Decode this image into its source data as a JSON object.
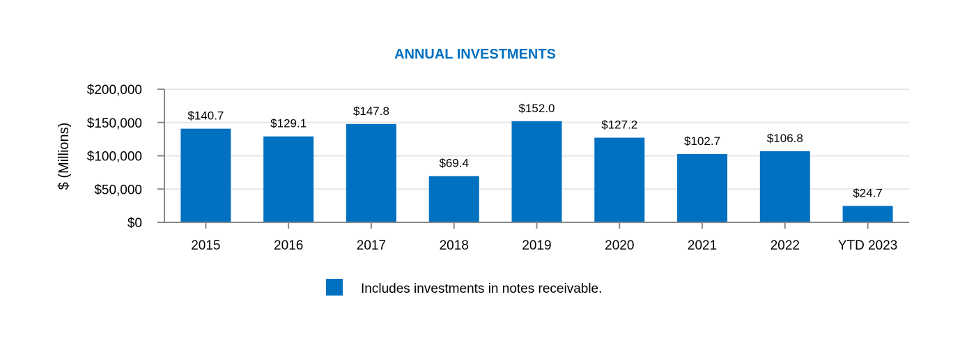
{
  "chart_data": {
    "type": "bar",
    "title": "ANNUAL INVESTMENTS",
    "xlabel": "",
    "ylabel": "$ (Millions)",
    "ylim": [
      0,
      200000
    ],
    "yticks": [
      0,
      50000,
      100000,
      150000,
      200000
    ],
    "ytick_labels": [
      "$0",
      "$50,000",
      "$100,000",
      "$150,000",
      "$200,000"
    ],
    "categories": [
      "2015",
      "2016",
      "2017",
      "2018",
      "2019",
      "2020",
      "2021",
      "2022",
      "YTD 2023"
    ],
    "values": [
      140700,
      129100,
      147800,
      69400,
      152000,
      127200,
      102700,
      106800,
      24700
    ],
    "data_labels": [
      "$140.7",
      "$129.1",
      "$147.8",
      "$69.4",
      "$152.0",
      "$127.2",
      "$102.7",
      "$106.8",
      "$24.7"
    ],
    "grid": true,
    "legend": {
      "position": "bottom",
      "entries": [
        "Includes investments in notes receivable."
      ]
    },
    "colors": {
      "bar": "#0070C0",
      "title": "#0070C0",
      "grid": "#E6E6E6",
      "axis": "#888888"
    }
  }
}
